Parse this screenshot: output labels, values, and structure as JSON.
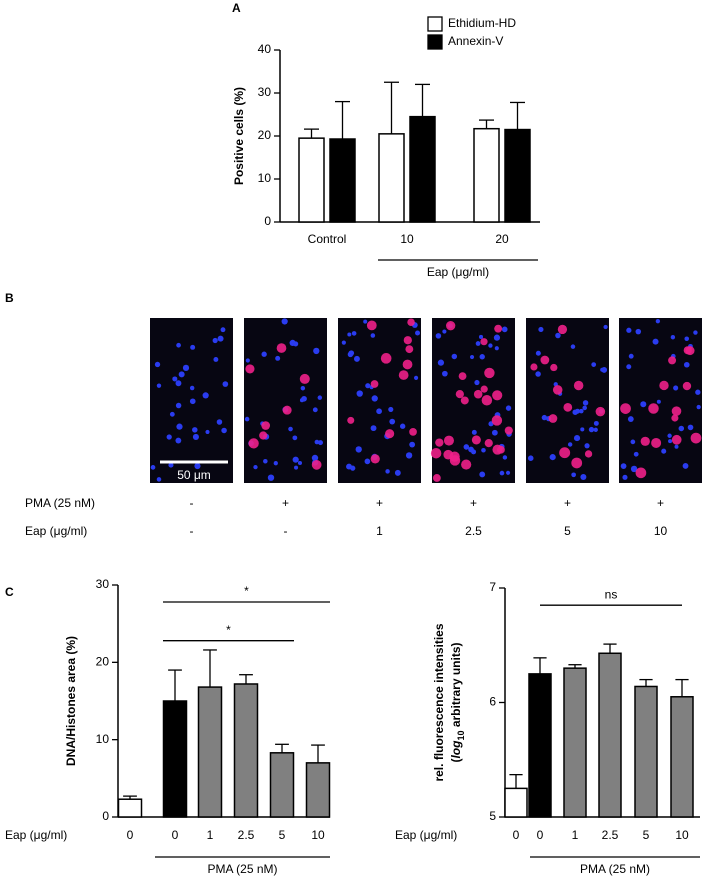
{
  "panel_letters": [
    "A",
    "B",
    "C"
  ],
  "chart_data": [
    {
      "type": "bar",
      "ylabel": "Positive cells (%)",
      "categories": [
        "Control",
        "10",
        "20"
      ],
      "series": [
        {
          "name": "Ethidium-HD",
          "color": "#ffffff",
          "values": [
            19.5,
            20.5,
            21.7
          ],
          "errors": [
            2.1,
            12,
            2
          ]
        },
        {
          "name": "Annexin-V",
          "color": "#000000",
          "values": [
            19.3,
            24.5,
            21.5
          ],
          "errors": [
            8.7,
            7.5,
            6.3
          ]
        }
      ],
      "ylim": [
        0,
        40
      ],
      "yticks": [
        0,
        10,
        20,
        30,
        40
      ],
      "group_label": "Eap (μg/ml)",
      "legend": "upper right"
    },
    {
      "type": "bar",
      "ylabel": "DNA/Histones area (%)",
      "categories": [
        "0",
        "0",
        "1",
        "2.5",
        "5",
        "10"
      ],
      "values": [
        2.3,
        15,
        16.8,
        17.2,
        8.3,
        7
      ],
      "errors": [
        0.4,
        4,
        4.8,
        1.2,
        1.1,
        2.3
      ],
      "colors": [
        "#ffffff",
        "#000000",
        "#808080",
        "#808080",
        "#808080",
        "#808080"
      ],
      "ylim": [
        0,
        30
      ],
      "yticks": [
        0,
        10,
        20,
        30
      ],
      "row_label": "Eap (μg/ml)",
      "group_label": "PMA (25 nM)",
      "annotations": [
        {
          "text": "*",
          "y": 27.8
        },
        {
          "text": "*",
          "y": 22.8
        }
      ]
    },
    {
      "type": "bar",
      "ylabel": {
        "line1": "rel. fluorescence intensities",
        "line2": [
          "(",
          "log",
          "10",
          " arbitrary units)"
        ]
      },
      "categories": [
        "0",
        "0",
        "1",
        "2.5",
        "5",
        "10"
      ],
      "values": [
        5.25,
        6.25,
        6.3,
        6.43,
        6.14,
        6.05
      ],
      "errors": [
        0.12,
        0.14,
        0.03,
        0.08,
        0.06,
        0.15
      ],
      "colors": [
        "#ffffff",
        "#000000",
        "#808080",
        "#808080",
        "#808080",
        "#808080"
      ],
      "ylim": [
        5,
        7
      ],
      "yticks": [
        5,
        6,
        7
      ],
      "row_label": "Eap (μg/ml)",
      "group_label": "PMA (25 nM)",
      "annotations": [
        {
          "text": "ns",
          "y": 6.85
        }
      ]
    }
  ],
  "panel_b": {
    "scale_bar": "50 μm",
    "rows": [
      {
        "label": "PMA (25 nM)",
        "values": [
          "-",
          "+",
          "+",
          "+",
          "+",
          "+"
        ]
      },
      {
        "label": "Eap (μg/ml)",
        "values": [
          "-",
          "-",
          "1",
          "2.5",
          "5",
          "10"
        ]
      }
    ]
  }
}
